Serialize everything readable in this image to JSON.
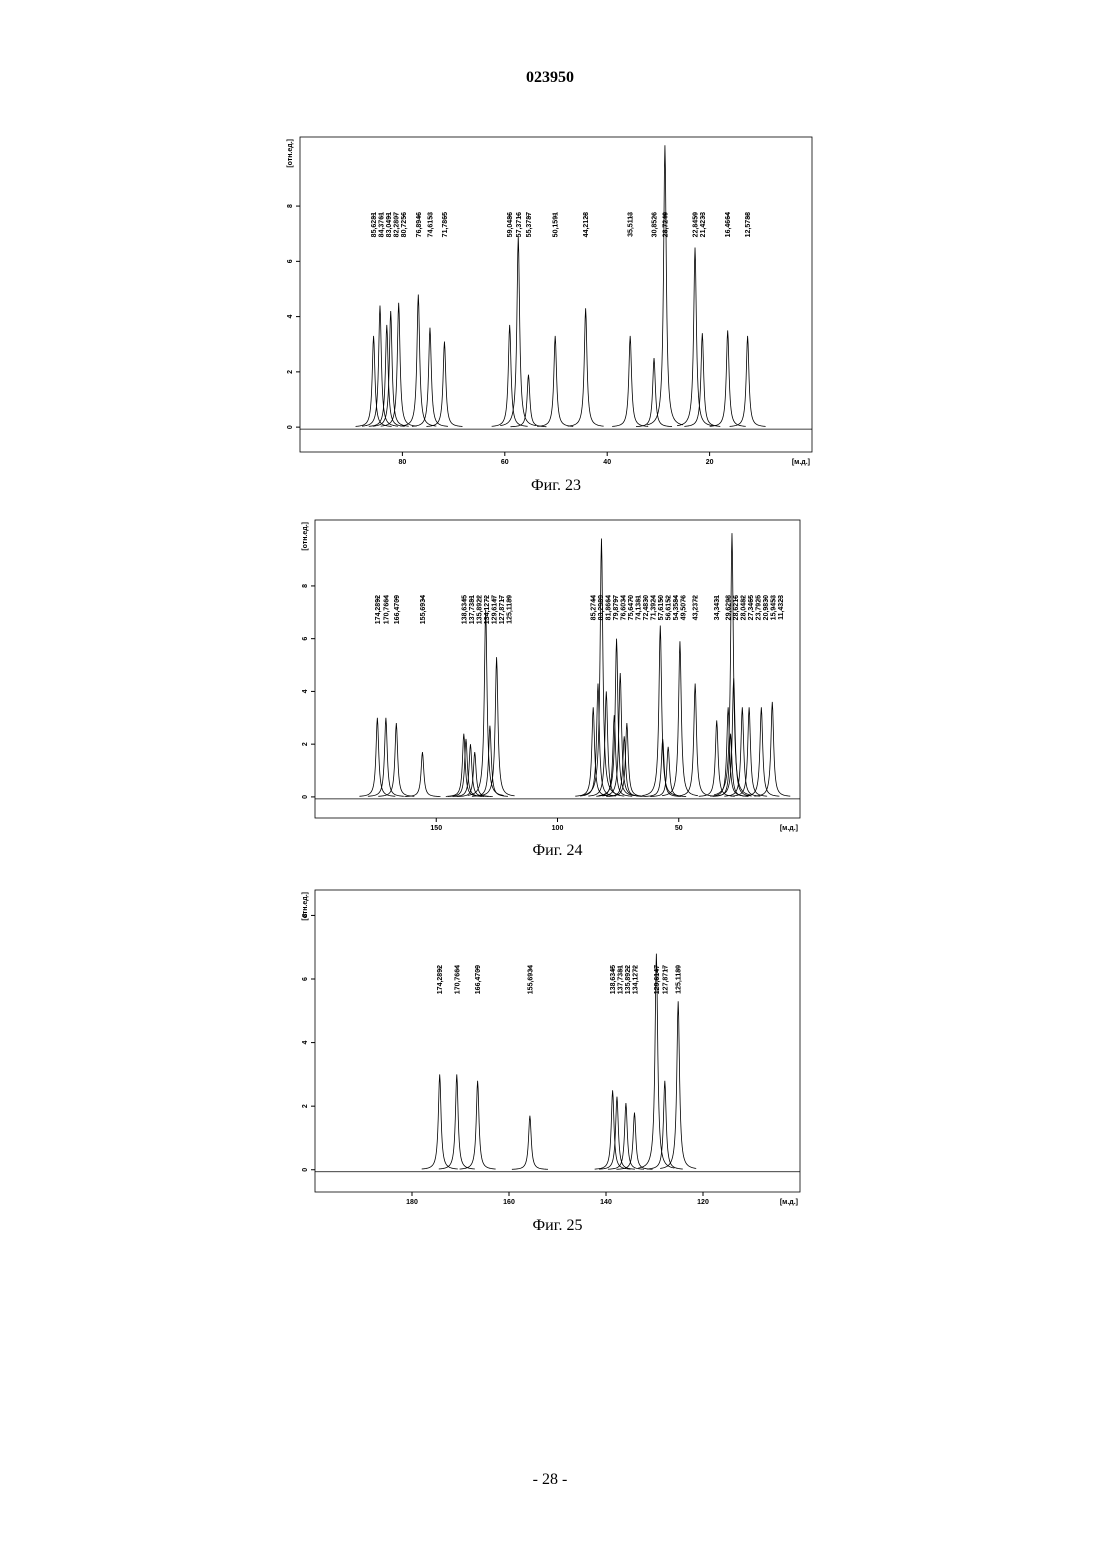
{
  "header": "023950",
  "footer": "- 28 -",
  "chart_data": [
    {
      "type": "line",
      "caption": "Фиг. 23",
      "y_label": "[отн.ед.]",
      "x_label": "[м.д.]",
      "color": "#000000",
      "x": [
        85.6281,
        84.3761,
        83.0491,
        82.2807,
        80.7256,
        76.8946,
        74.6153,
        71.7865,
        59.0486,
        57.3716,
        55.3787,
        50.1591,
        44.2128,
        35.5113,
        30.8526,
        28.7249,
        22.8459,
        21.4233,
        16.4664,
        12.5788
      ],
      "x_labels": [
        "85,6281",
        "84,3761",
        "83,0491",
        "82,2807",
        "80,7256",
        "76,8946",
        "74,6153",
        "71,7865",
        "59,0486",
        "57,3716",
        "55,3787",
        "50,1591",
        "44,2128",
        "35,5113",
        "30,8526",
        "28,7249",
        "22,8459",
        "21,4233",
        "16,4664",
        "12,5788"
      ],
      "values": [
        3.3,
        4.4,
        3.7,
        4.2,
        4.5,
        4.8,
        3.6,
        3.1,
        3.7,
        6.9,
        1.9,
        3.3,
        4.3,
        3.3,
        2.5,
        10.2,
        6.5,
        3.4,
        3.5,
        3.3
      ],
      "xlim": [
        100,
        0
      ],
      "xticks": [
        80,
        60,
        40,
        20
      ],
      "ylim": [
        -0.9,
        10.5
      ],
      "yticks": [
        0,
        2,
        4,
        6,
        8
      ]
    },
    {
      "type": "line",
      "caption": "Фиг. 24",
      "y_label": "[отн.ед.]",
      "x_label": "[м.д.]",
      "color": "#000000",
      "x": [
        174.2892,
        170.7664,
        166.4709,
        155.6934,
        138.6345,
        137.7381,
        135.8922,
        134.1272,
        129.6147,
        127.8717,
        125.1189,
        85.2744,
        83.2989,
        81.8664,
        79.8797,
        76.6034,
        75.647,
        74.1381,
        72.483,
        71.3924,
        57.615,
        56.6152,
        54.3584,
        49.5076,
        43.2372,
        34.3431,
        29.6298,
        28.6216,
        28.0482,
        27.3465,
        23.7925,
        20.983,
        15.9453,
        11.4323
      ],
      "x_labels": [
        "174,2892",
        "170,7664",
        "166,4709",
        "155,6934",
        "138,6345",
        "137,7381",
        "135,8922",
        "134,1272",
        "129,6147",
        "127,8717",
        "125,1189",
        "85,2744",
        "83,2989",
        "81,8664",
        "79,8797",
        "76,6034",
        "75,6470",
        "74,1381",
        "72,4830",
        "71,3924",
        "57,6150",
        "56,6152",
        "54,3584",
        "49,5076",
        "43,2372",
        "34,3431",
        "29,6298",
        "28,6216",
        "28,0482",
        "27,3465",
        "23,7925",
        "20,9830",
        "15,9453",
        "11,4323"
      ],
      "values": [
        3.0,
        3.0,
        2.8,
        1.7,
        2.4,
        2.2,
        2.0,
        1.7,
        7.1,
        2.7,
        5.3,
        3.4,
        4.3,
        9.8,
        4.0,
        3.1,
        6.0,
        4.7,
        2.3,
        2.8,
        6.5,
        2.2,
        1.9,
        5.9,
        4.3,
        2.9,
        3.4,
        2.4,
        10.0,
        4.5,
        3.4,
        3.4,
        3.4,
        3.6
      ],
      "xlim": [
        200,
        0
      ],
      "xticks": [
        150,
        100,
        50
      ],
      "ylim": [
        -0.8,
        10.5
      ],
      "yticks": [
        0,
        2,
        4,
        6,
        8
      ]
    },
    {
      "type": "line",
      "caption": "Фиг. 25",
      "y_label": "[отн.ед.]",
      "x_label": "[м.д.]",
      "color": "#000000",
      "x": [
        174.2892,
        170.7664,
        166.4709,
        155.6934,
        138.6345,
        137.7381,
        135.8922,
        134.1272,
        129.6147,
        127.8717,
        125.1189
      ],
      "x_labels": [
        "174,2892",
        "170,7664",
        "166,4709",
        "155,6934",
        "138,6345",
        "137,7381",
        "135,8922",
        "134,1272",
        "129,6147",
        "127,8717",
        "125,1189"
      ],
      "values": [
        3.0,
        3.0,
        2.8,
        1.7,
        2.5,
        2.3,
        2.1,
        1.8,
        6.8,
        2.8,
        5.3
      ],
      "xlim": [
        200,
        100
      ],
      "xticks": [
        180,
        160,
        140,
        120
      ],
      "ylim": [
        -0.7,
        8.8
      ],
      "yticks": [
        0,
        2,
        4,
        6,
        8
      ]
    }
  ]
}
